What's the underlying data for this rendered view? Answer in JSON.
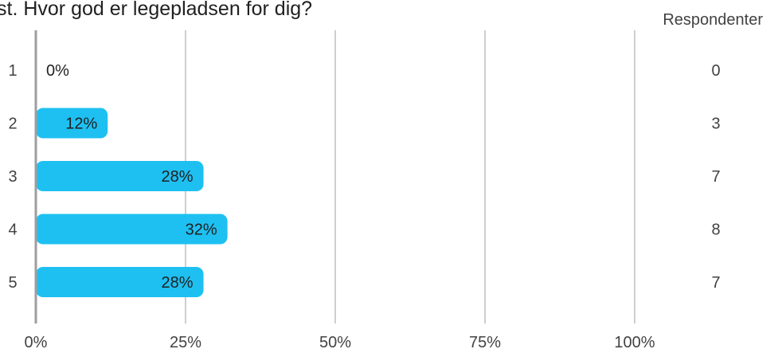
{
  "title": "st. Hvor god er legepladsen for dig?",
  "respondents_header": "Respondenter",
  "accent_color": "#1ec0f2",
  "chart_data": {
    "type": "bar",
    "orientation": "horizontal",
    "title": "st. Hvor god er legepladsen for dig?",
    "categories": [
      "1",
      "2",
      "3",
      "4",
      "5"
    ],
    "values": [
      0,
      12,
      28,
      32,
      28
    ],
    "value_labels": [
      "0%",
      "12%",
      "28%",
      "32%",
      "28%"
    ],
    "respondents": [
      "0",
      "3",
      "7",
      "8",
      "7"
    ],
    "xlim": [
      0,
      100
    ],
    "x_ticks": [
      0,
      25,
      50,
      75,
      100
    ],
    "x_tick_labels": [
      "0%",
      "25%",
      "50%",
      "75%",
      "100%"
    ],
    "grid": true,
    "bar_color": "#1ec0f2"
  }
}
